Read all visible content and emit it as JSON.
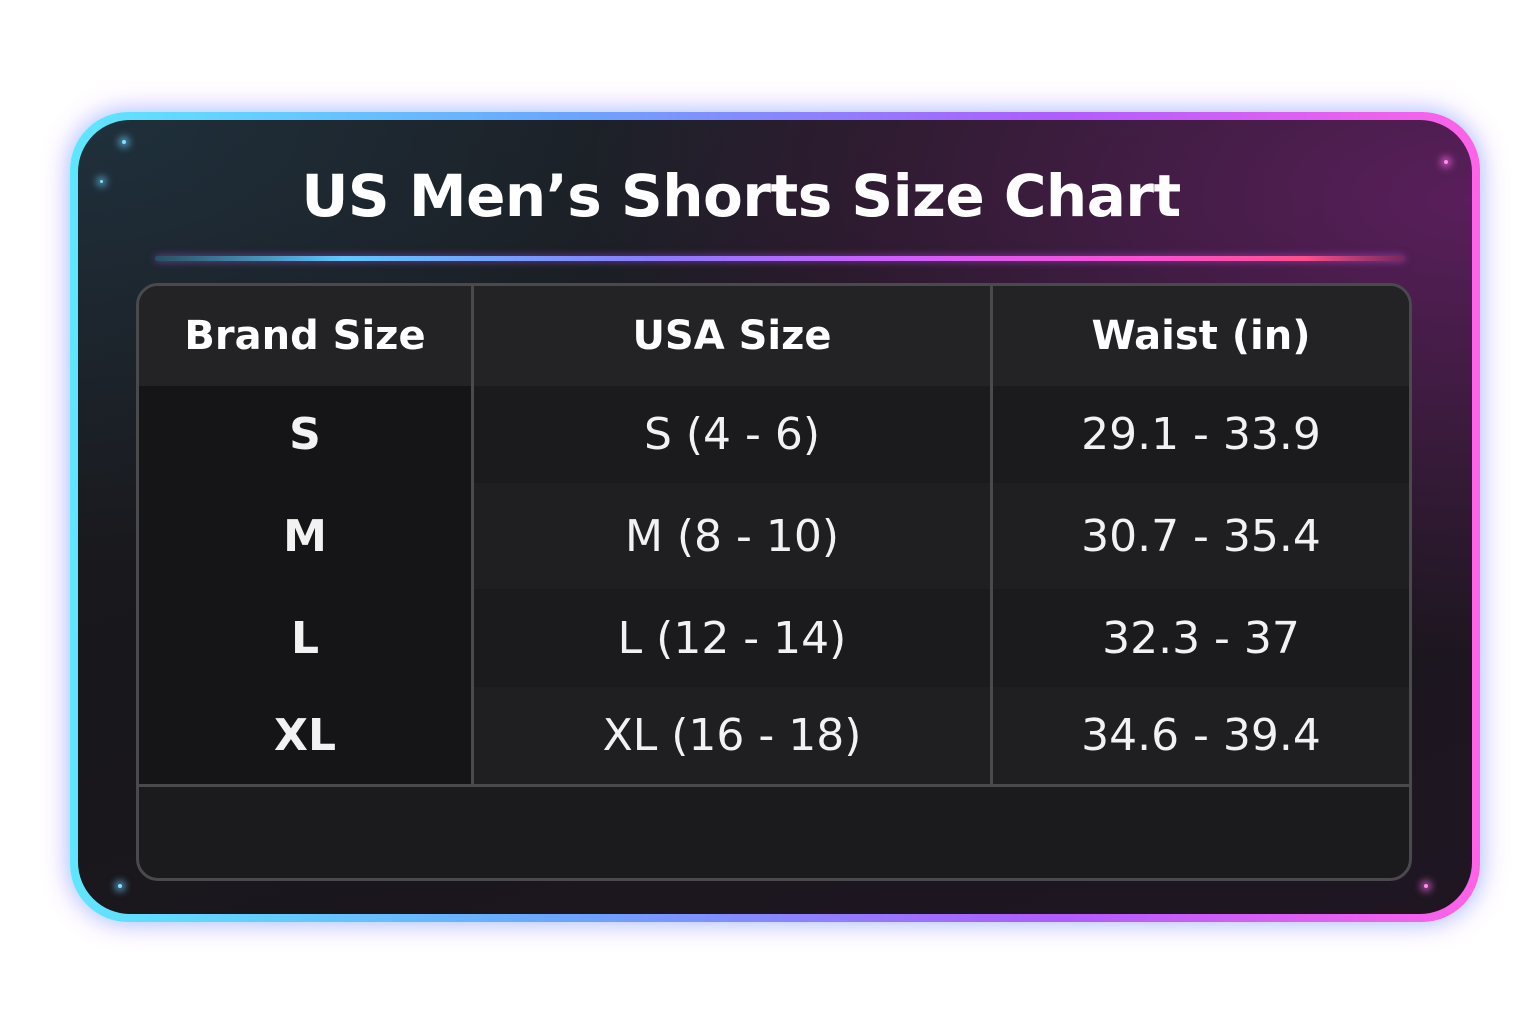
{
  "title": "US Men’s Shorts Size Chart",
  "colors": {
    "frame_gradient_start": "#5fe7ff",
    "frame_gradient_end": "#ff63e8",
    "panel_background": "#18171b",
    "text": "#ffffff"
  },
  "table": {
    "headers": [
      "Brand Size",
      "USA Size",
      "Waist (in)"
    ],
    "rows": [
      {
        "brand": "S",
        "usa": "S (4 - 6)",
        "waist": "29.1 - 33.9"
      },
      {
        "brand": "M",
        "usa": "M (8 - 10)",
        "waist": "30.7 - 35.4"
      },
      {
        "brand": "L",
        "usa": "L (12 - 14)",
        "waist": "32.3 - 37"
      },
      {
        "brand": "XL",
        "usa": "XL (16 - 18)",
        "waist": "34.6 - 39.4"
      }
    ]
  }
}
